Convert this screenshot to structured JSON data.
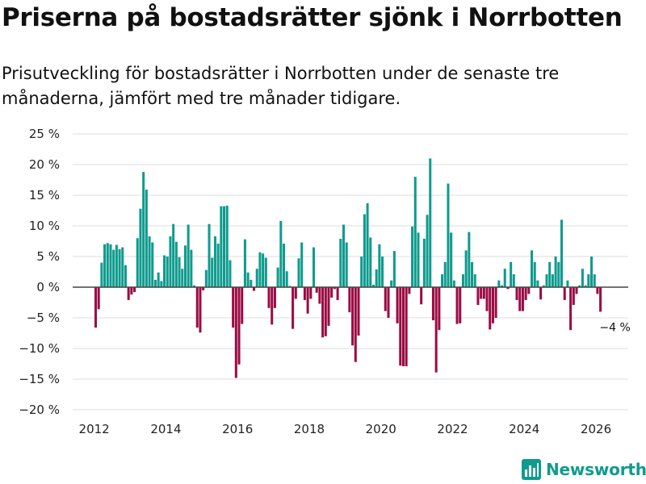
{
  "title": "Priserna på bostadsrätter sjönk i Norrbotten",
  "subtitle": "Prisutveckling för bostadsrätter i Norrbotten under de senaste tre månaderna, jämfört med tre månader tidigare.",
  "brand": {
    "name": "Newsworthy",
    "icon": "bar-chart-logo-icon"
  },
  "colors": {
    "positive": "#0f9b8e",
    "negative": "#9b0b44",
    "zero_line": "#444444",
    "grid": "#dddddd",
    "brand": "#0f9b8e"
  },
  "chart_data": {
    "type": "bar",
    "title": "Priserna på bostadsrätter sjönk i Norrbotten",
    "xlabel": "",
    "ylabel": "",
    "unit": "%",
    "grid": true,
    "start": {
      "year": 2012,
      "month": 1
    },
    "xlim": [
      2011.4,
      2026.9
    ],
    "ylim": [
      -20,
      25
    ],
    "y_ticks": [
      25,
      20,
      15,
      10,
      5,
      0,
      -5,
      -10,
      -15,
      -20
    ],
    "y_tick_labels": [
      "25 %",
      "20 %",
      "15 %",
      "10 %",
      "5 %",
      "0 %",
      "−5 %",
      "−10 %",
      "−15 %",
      "−20 %"
    ],
    "x_ticks": [
      2012,
      2014,
      2016,
      2018,
      2020,
      2022,
      2024,
      2026
    ],
    "x_tick_labels": [
      "2012",
      "2014",
      "2016",
      "2018",
      "2020",
      "2022",
      "2024",
      "2026"
    ],
    "annotation": {
      "text": "−4 %",
      "value": -4
    },
    "values": [
      -6.6,
      -3.6,
      4.0,
      7.0,
      7.2,
      7.0,
      6.1,
      6.9,
      6.2,
      6.5,
      3.6,
      -2.1,
      -1.2,
      -0.8,
      8.0,
      12.8,
      18.8,
      15.9,
      8.3,
      7.3,
      1.2,
      2.4,
      1.0,
      5.2,
      5.0,
      8.3,
      10.3,
      7.4,
      4.9,
      3.0,
      6.8,
      10.2,
      6.1,
      0.3,
      -6.6,
      -7.4,
      -0.5,
      2.8,
      10.3,
      4.8,
      8.3,
      7.1,
      13.2,
      13.2,
      13.3,
      4.4,
      -6.6,
      -14.8,
      -12.6,
      -6.0,
      7.8,
      2.4,
      1.2,
      -0.6,
      3.0,
      5.7,
      5.5,
      4.8,
      -3.4,
      -6.1,
      -3.4,
      3.2,
      10.8,
      7.1,
      2.6,
      0.2,
      -6.8,
      -1.9,
      4.7,
      7.3,
      -2.1,
      -4.3,
      -1.9,
      6.5,
      -0.9,
      -2.7,
      -8.2,
      -8.0,
      -6.3,
      -1.7,
      -0.3,
      -2.1,
      7.9,
      10.2,
      7.3,
      -4.1,
      -9.5,
      -12.2,
      -7.9,
      5.0,
      11.9,
      13.7,
      8.1,
      0.4,
      2.9,
      7.0,
      5.0,
      -3.9,
      -5.0,
      1.1,
      5.9,
      -5.9,
      -12.8,
      -12.9,
      -12.9,
      -1.1,
      9.9,
      18.0,
      8.9,
      -2.8,
      7.9,
      11.8,
      21.0,
      -5.4,
      -13.9,
      -7.0,
      2.1,
      4.1,
      16.9,
      8.9,
      1.1,
      -6.0,
      -5.9,
      2.1,
      6.0,
      9.0,
      4.1,
      2.1,
      -2.9,
      -1.9,
      -1.9,
      -3.9,
      -6.9,
      -5.9,
      -5.0,
      1.1,
      0.3,
      3.0,
      -0.3,
      4.1,
      2.1,
      -2.1,
      -3.9,
      -3.9,
      -2.1,
      -1.1,
      6.0,
      4.1,
      1.1,
      -2.0,
      0.3,
      2.1,
      4.1,
      2.1,
      5.0,
      4.1,
      11.0,
      -2.1,
      1.1,
      -7.0,
      -2.9,
      -1.1,
      0.3,
      3.0,
      0.3,
      2.1,
      5.0,
      2.1,
      -1.1,
      -4.0
    ]
  }
}
